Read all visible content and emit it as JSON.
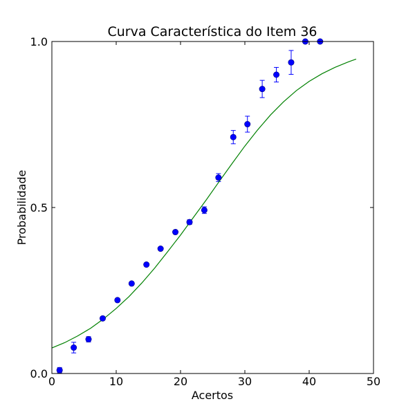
{
  "chart_data": {
    "type": "scatter",
    "title": "Curva Característica do Item 36",
    "xlabel": "Acertos",
    "ylabel": "Probabilidade",
    "xlim": [
      0,
      50
    ],
    "ylim": [
      0.0,
      1.0
    ],
    "xticks": [
      0,
      10,
      20,
      30,
      40,
      50
    ],
    "xtick_labels": [
      "0",
      "10",
      "20",
      "30",
      "40",
      "50"
    ],
    "yticks": [
      0.0,
      0.5,
      1.0
    ],
    "ytick_labels": [
      "0.0",
      "0.5",
      "1.0"
    ],
    "grid": false,
    "series": [
      {
        "kind": "errorbar",
        "color": "#0000ff",
        "points": [
          {
            "x": 1.2,
            "y": 0.01,
            "err": 0.008
          },
          {
            "x": 3.4,
            "y": 0.078,
            "err": 0.016
          },
          {
            "x": 5.7,
            "y": 0.103,
            "err": 0.008
          },
          {
            "x": 7.9,
            "y": 0.166,
            "err": 0.005
          },
          {
            "x": 10.2,
            "y": 0.221,
            "err": 0.004
          },
          {
            "x": 12.4,
            "y": 0.271,
            "err": 0.003
          },
          {
            "x": 14.7,
            "y": 0.328,
            "err": 0.003
          },
          {
            "x": 16.9,
            "y": 0.376,
            "err": 0.003
          },
          {
            "x": 19.2,
            "y": 0.426,
            "err": 0.004
          },
          {
            "x": 21.4,
            "y": 0.456,
            "err": 0.007
          },
          {
            "x": 23.7,
            "y": 0.492,
            "err": 0.01
          },
          {
            "x": 25.9,
            "y": 0.59,
            "err": 0.012
          },
          {
            "x": 28.2,
            "y": 0.712,
            "err": 0.02
          },
          {
            "x": 30.4,
            "y": 0.751,
            "err": 0.024
          },
          {
            "x": 32.7,
            "y": 0.857,
            "err": 0.026
          },
          {
            "x": 34.9,
            "y": 0.9,
            "err": 0.022
          },
          {
            "x": 37.2,
            "y": 0.937,
            "err": 0.036
          },
          {
            "x": 39.4,
            "y": 1.0,
            "err": 0.0
          },
          {
            "x": 41.7,
            "y": 1.0,
            "err": 0.0
          }
        ]
      },
      {
        "kind": "line",
        "color": "#008000",
        "x_range": [
          0,
          47.3
        ],
        "x": [
          0,
          2,
          4,
          6,
          8,
          10,
          12,
          14,
          16,
          18,
          20,
          22,
          24,
          26,
          28,
          30,
          32,
          34,
          36,
          38,
          40,
          42,
          44,
          46,
          47.3
        ],
        "y": [
          0.077,
          0.093,
          0.113,
          0.136,
          0.164,
          0.196,
          0.232,
          0.273,
          0.318,
          0.367,
          0.417,
          0.47,
          0.523,
          0.578,
          0.632,
          0.685,
          0.734,
          0.779,
          0.818,
          0.852,
          0.88,
          0.903,
          0.922,
          0.938,
          0.947
        ]
      }
    ]
  }
}
